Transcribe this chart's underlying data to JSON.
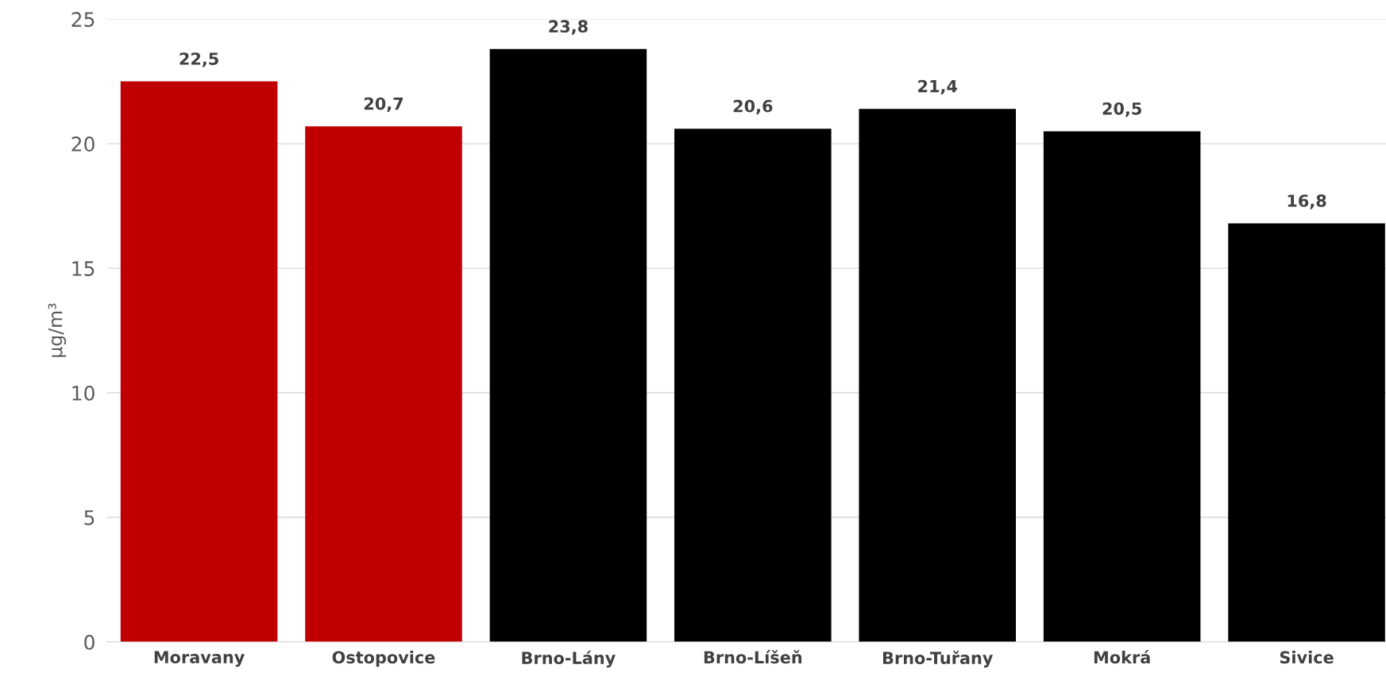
{
  "chart_data": {
    "type": "bar",
    "ylabel": "µg/m³",
    "categories": [
      "Moravany",
      "Ostopovice",
      "Brno-Lány",
      "Brno-Líšeň",
      "Brno-Tuřany",
      "Mokrá",
      "Sivice"
    ],
    "values": [
      22.5,
      20.7,
      23.8,
      20.6,
      21.4,
      20.5,
      16.8
    ],
    "colors": [
      "#c00000",
      "#c00000",
      "#000000",
      "#000000",
      "#000000",
      "#000000",
      "#000000"
    ],
    "value_labels": [
      "22,5",
      "20,7",
      "23,8",
      "20,6",
      "21,4",
      "20,5",
      "16,8"
    ],
    "ylim": [
      0,
      25
    ],
    "yticks": [
      0,
      5,
      10,
      15,
      20,
      25
    ],
    "grid": "y"
  }
}
